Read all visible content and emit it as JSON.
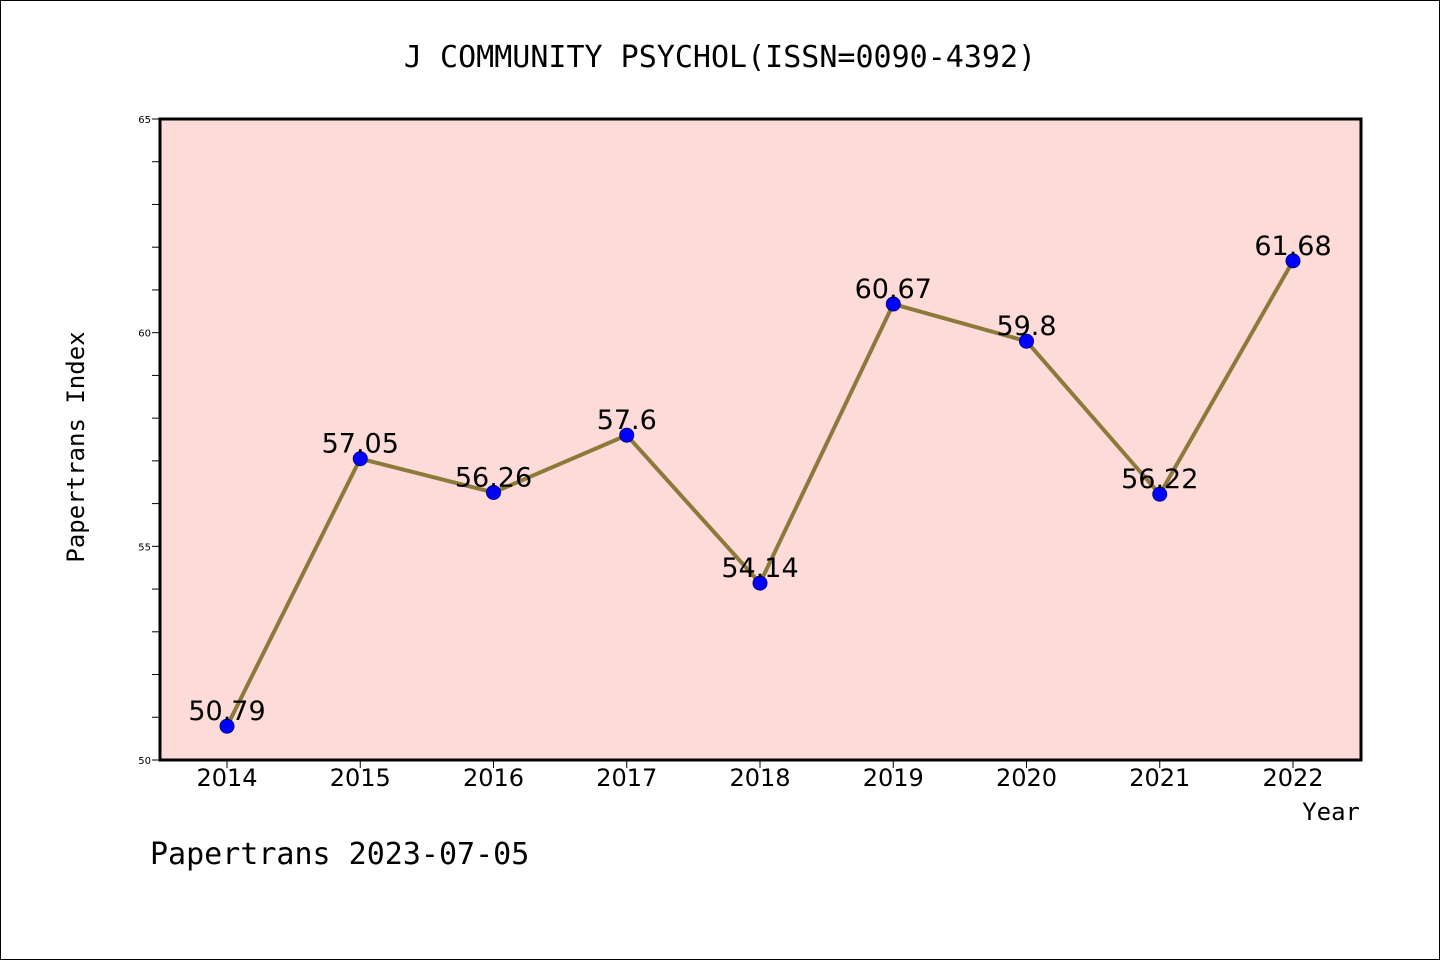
{
  "chart_data": {
    "type": "line",
    "title": "J COMMUNITY PSYCHOL(ISSN=0090-4392)",
    "xlabel": "Year",
    "ylabel": "Papertrans Index",
    "categories": [
      "2014",
      "2015",
      "2016",
      "2017",
      "2018",
      "2019",
      "2020",
      "2021",
      "2022"
    ],
    "series": [
      {
        "values": [
          50.79,
          57.05,
          56.26,
          57.6,
          54.14,
          60.67,
          59.8,
          56.22,
          61.68
        ],
        "labels": [
          "50.79",
          "57.05",
          "56.26",
          "57.6",
          "54.14",
          "60.67",
          "59.8",
          "56.22",
          "61.68"
        ]
      }
    ],
    "ylim": [
      50,
      65
    ],
    "yticks": [
      50,
      55,
      60,
      65
    ],
    "ytick_labels": [
      "50",
      "55",
      "60",
      "65"
    ],
    "minor_ytick_step": 1,
    "grid": false,
    "legend": "none",
    "colors": {
      "plot_background": "#fddbd8",
      "line": "#8c7a3b",
      "marker": "#0000ff",
      "marker_edge": "#00008b",
      "axes": "#000000"
    }
  },
  "footer": {
    "text": "Papertrans 2023-07-05"
  }
}
